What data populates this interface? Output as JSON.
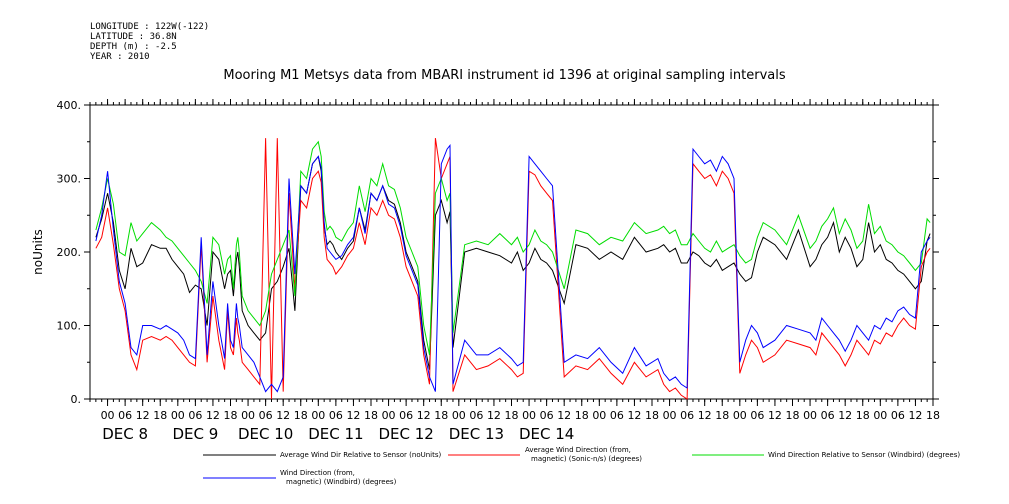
{
  "header": {
    "longitude": "LONGITUDE : 122W(-122)",
    "latitude": "LATITUDE : 36.8N",
    "depth": "DEPTH (m) : -2.5",
    "year": "YEAR : 2010"
  },
  "chart_data": {
    "type": "line",
    "title": "Mooring M1 Metsys data from MBARI instrument id 1396 at original sampling intervals",
    "ylabel": "noUnits",
    "xlabel": "",
    "ylim": [
      0,
      400
    ],
    "yticks": [
      0,
      100,
      200,
      300,
      400
    ],
    "ytick_labels": [
      "0.",
      "100.",
      "200.",
      "300.",
      "400."
    ],
    "xlim_hours": [
      -6,
      282
    ],
    "hour_tick_labels": [
      "00",
      "06",
      "12",
      "18"
    ],
    "day_labels": [
      "DEC  8",
      "DEC  9",
      "DEC 10",
      "DEC 11",
      "DEC 12",
      "DEC 13",
      "DEC 14"
    ],
    "grid": false,
    "legend_position": "bottom",
    "series": [
      {
        "name": "Average Wind Dir Relative to Sensor (noUnits)",
        "color": "#000000",
        "x": [
          -4,
          -2,
          0,
          2,
          4,
          6,
          8,
          10,
          12,
          15,
          18,
          20,
          22,
          24,
          26,
          28,
          30,
          32,
          34,
          36,
          38,
          40,
          41,
          42,
          43,
          44,
          44.5,
          45,
          46,
          48,
          50,
          52,
          54,
          56,
          58,
          60,
          62,
          64,
          66,
          68,
          70,
          72,
          73,
          74,
          75,
          76,
          77,
          78,
          80,
          82,
          84,
          86,
          88,
          90,
          92,
          94,
          96,
          98,
          100,
          102,
          104,
          106,
          108,
          110,
          112,
          114,
          116,
          117,
          118,
          122,
          126,
          130,
          134,
          138,
          140,
          142,
          144,
          146,
          148,
          150,
          152,
          156,
          160,
          164,
          168,
          172,
          176,
          180,
          184,
          188,
          190,
          192,
          194,
          196,
          198,
          200,
          202,
          204,
          206,
          208,
          210,
          212,
          214,
          216,
          218,
          220,
          222,
          224,
          228,
          232,
          236,
          240,
          242,
          244,
          246,
          248,
          250,
          252,
          254,
          256,
          258,
          260,
          262,
          264,
          266,
          268,
          270,
          272,
          274,
          276,
          278,
          280,
          281
        ],
        "y": [
          220,
          245,
          280,
          240,
          175,
          150,
          205,
          180,
          185,
          210,
          205,
          205,
          190,
          180,
          170,
          145,
          155,
          150,
          100,
          200,
          190,
          150,
          170,
          175,
          140,
          190,
          200,
          180,
          120,
          100,
          90,
          80,
          90,
          150,
          160,
          180,
          205,
          120,
          290,
          280,
          320,
          330,
          310,
          235,
          210,
          215,
          210,
          200,
          190,
          205,
          215,
          260,
          230,
          280,
          270,
          290,
          270,
          265,
          240,
          200,
          180,
          160,
          80,
          40,
          250,
          270,
          240,
          255,
          70,
          200,
          205,
          200,
          195,
          185,
          200,
          175,
          185,
          205,
          190,
          185,
          175,
          130,
          210,
          205,
          190,
          200,
          190,
          220,
          200,
          205,
          210,
          200,
          205,
          185,
          185,
          200,
          195,
          185,
          180,
          190,
          175,
          180,
          185,
          170,
          160,
          165,
          200,
          220,
          210,
          190,
          230,
          180,
          190,
          210,
          220,
          240,
          200,
          220,
          205,
          180,
          190,
          240,
          200,
          210,
          190,
          185,
          175,
          170,
          160,
          150,
          160,
          215,
          225
        ]
      },
      {
        "name": "Average Wind Direction (from, magnetic) (Sonic-n/s) (degrees)",
        "color": "#ff0000",
        "x": [
          -4,
          -2,
          0,
          2,
          4,
          6,
          8,
          10,
          12,
          15,
          18,
          20,
          22,
          24,
          26,
          28,
          30,
          32,
          34,
          36,
          38,
          40,
          41,
          42,
          43,
          44,
          44.5,
          45,
          46,
          48,
          50,
          52,
          54,
          56,
          58,
          60,
          62,
          64,
          66,
          68,
          70,
          72,
          73,
          74,
          75,
          76,
          77,
          78,
          80,
          82,
          84,
          86,
          88,
          90,
          92,
          94,
          96,
          98,
          100,
          102,
          104,
          106,
          108,
          110,
          112,
          114,
          116,
          117,
          118,
          122,
          126,
          130,
          134,
          138,
          140,
          142,
          144,
          146,
          148,
          150,
          152,
          156,
          160,
          164,
          168,
          172,
          176,
          180,
          184,
          188,
          190,
          192,
          194,
          196,
          198,
          200,
          202,
          204,
          206,
          208,
          210,
          212,
          214,
          216,
          218,
          220,
          222,
          224,
          228,
          232,
          236,
          240,
          242,
          244,
          246,
          248,
          250,
          252,
          254,
          256,
          258,
          260,
          262,
          264,
          266,
          268,
          270,
          272,
          274,
          276,
          278,
          280,
          281
        ],
        "y": [
          205,
          220,
          260,
          210,
          150,
          120,
          60,
          40,
          80,
          85,
          80,
          85,
          80,
          70,
          60,
          50,
          45,
          210,
          50,
          140,
          80,
          40,
          120,
          70,
          60,
          110,
          90,
          80,
          50,
          40,
          30,
          20,
          355,
          0,
          355,
          10,
          280,
          150,
          270,
          260,
          300,
          310,
          295,
          220,
          190,
          185,
          180,
          170,
          180,
          195,
          205,
          240,
          210,
          260,
          250,
          270,
          250,
          245,
          220,
          180,
          160,
          140,
          60,
          20,
          355,
          300,
          320,
          330,
          10,
          60,
          40,
          45,
          55,
          40,
          30,
          35,
          310,
          305,
          290,
          280,
          270,
          30,
          45,
          40,
          55,
          35,
          20,
          50,
          30,
          40,
          20,
          10,
          15,
          5,
          0,
          320,
          310,
          300,
          305,
          290,
          310,
          300,
          280,
          35,
          60,
          80,
          70,
          50,
          60,
          80,
          75,
          70,
          60,
          90,
          80,
          70,
          60,
          45,
          60,
          80,
          70,
          60,
          80,
          75,
          90,
          85,
          100,
          110,
          100,
          95,
          180,
          200,
          205
        ]
      },
      {
        "name": "Wind Direction Relative to Sensor (Windbird) (degrees)",
        "color": "#00dd00",
        "x": [
          -4,
          -2,
          0,
          2,
          4,
          6,
          8,
          10,
          12,
          15,
          18,
          20,
          22,
          24,
          26,
          28,
          30,
          32,
          34,
          36,
          38,
          40,
          41,
          42,
          43,
          44,
          44.5,
          45,
          46,
          48,
          50,
          52,
          54,
          56,
          58,
          60,
          62,
          64,
          66,
          68,
          70,
          72,
          73,
          74,
          75,
          76,
          77,
          78,
          80,
          82,
          84,
          86,
          88,
          90,
          92,
          94,
          96,
          98,
          100,
          102,
          104,
          106,
          108,
          110,
          112,
          114,
          116,
          117,
          118,
          122,
          126,
          130,
          134,
          138,
          140,
          142,
          144,
          146,
          148,
          150,
          152,
          156,
          160,
          164,
          168,
          172,
          176,
          180,
          184,
          188,
          190,
          192,
          194,
          196,
          198,
          200,
          202,
          204,
          206,
          208,
          210,
          212,
          214,
          216,
          218,
          220,
          222,
          224,
          228,
          232,
          236,
          240,
          242,
          244,
          246,
          248,
          250,
          252,
          254,
          256,
          258,
          260,
          262,
          264,
          266,
          268,
          270,
          272,
          274,
          276,
          278,
          280,
          281
        ],
        "y": [
          230,
          260,
          300,
          265,
          200,
          195,
          240,
          215,
          225,
          240,
          230,
          220,
          215,
          205,
          195,
          185,
          175,
          160,
          130,
          220,
          210,
          170,
          190,
          195,
          150,
          210,
          220,
          200,
          140,
          120,
          110,
          100,
          120,
          170,
          190,
          210,
          230,
          140,
          310,
          300,
          340,
          350,
          330,
          255,
          230,
          235,
          230,
          220,
          215,
          230,
          240,
          290,
          255,
          300,
          290,
          320,
          290,
          285,
          260,
          220,
          200,
          180,
          100,
          60,
          280,
          300,
          270,
          280,
          90,
          210,
          215,
          210,
          225,
          210,
          220,
          200,
          210,
          230,
          215,
          210,
          200,
          150,
          230,
          225,
          210,
          220,
          215,
          240,
          225,
          230,
          235,
          225,
          230,
          210,
          210,
          225,
          215,
          205,
          200,
          215,
          200,
          205,
          210,
          195,
          185,
          190,
          220,
          240,
          230,
          210,
          250,
          205,
          215,
          235,
          245,
          260,
          225,
          245,
          230,
          205,
          215,
          265,
          225,
          235,
          215,
          210,
          200,
          195,
          185,
          175,
          185,
          245,
          240
        ]
      },
      {
        "name": "Wind Direction (from, magnetic) (Windbird) (degrees)",
        "color": "#0000ff",
        "x": [
          -4,
          -2,
          0,
          2,
          4,
          6,
          8,
          10,
          12,
          15,
          18,
          20,
          22,
          24,
          26,
          28,
          30,
          32,
          34,
          36,
          38,
          40,
          41,
          42,
          43,
          44,
          44.5,
          45,
          46,
          48,
          50,
          52,
          54,
          56,
          58,
          60,
          62,
          64,
          66,
          68,
          70,
          72,
          73,
          74,
          75,
          76,
          77,
          78,
          80,
          82,
          84,
          86,
          88,
          90,
          92,
          94,
          96,
          98,
          100,
          102,
          104,
          106,
          108,
          110,
          112,
          114,
          116,
          117,
          118,
          122,
          126,
          130,
          134,
          138,
          140,
          142,
          144,
          146,
          148,
          150,
          152,
          156,
          160,
          164,
          168,
          172,
          176,
          180,
          184,
          188,
          190,
          192,
          194,
          196,
          198,
          200,
          202,
          204,
          206,
          208,
          210,
          212,
          214,
          216,
          218,
          220,
          222,
          224,
          228,
          232,
          236,
          240,
          242,
          244,
          246,
          248,
          250,
          252,
          254,
          256,
          258,
          260,
          262,
          264,
          266,
          268,
          270,
          272,
          274,
          276,
          278,
          280,
          281
        ],
        "y": [
          215,
          250,
          310,
          230,
          160,
          130,
          70,
          60,
          100,
          100,
          95,
          100,
          95,
          90,
          80,
          60,
          55,
          220,
          60,
          160,
          100,
          55,
          130,
          80,
          70,
          130,
          110,
          100,
          70,
          60,
          50,
          30,
          10,
          20,
          10,
          30,
          300,
          170,
          290,
          280,
          320,
          330,
          315,
          240,
          205,
          200,
          195,
          190,
          195,
          210,
          220,
          260,
          225,
          280,
          270,
          290,
          265,
          260,
          235,
          195,
          175,
          155,
          70,
          30,
          10,
          320,
          340,
          345,
          20,
          80,
          60,
          60,
          70,
          55,
          45,
          50,
          330,
          320,
          310,
          300,
          290,
          50,
          60,
          55,
          70,
          50,
          35,
          70,
          45,
          55,
          35,
          25,
          30,
          20,
          15,
          340,
          330,
          320,
          325,
          310,
          330,
          320,
          300,
          50,
          80,
          100,
          90,
          70,
          80,
          100,
          95,
          90,
          80,
          110,
          100,
          90,
          80,
          65,
          80,
          100,
          90,
          80,
          100,
          95,
          110,
          105,
          120,
          125,
          115,
          110,
          200,
          215,
          220
        ]
      }
    ],
    "legend": [
      {
        "label": "Average Wind Dir Relative to Sensor (noUnits)",
        "color": "#000000"
      },
      {
        "label": "Average Wind Direction (from, magnetic) (Sonic-n/s) (degrees)",
        "label_line1": "Average Wind Direction (from,",
        "label_line2": "magnetic) (Sonic-n/s) (degrees)",
        "color": "#ff0000"
      },
      {
        "label": "Wind Direction Relative to Sensor (Windbird) (degrees)",
        "color": "#00dd00"
      },
      {
        "label": "Wind Direction (from, magnetic) (Windbird) (degrees)",
        "label_line1": "Wind Direction (from,",
        "label_line2": "magnetic) (Windbird) (degrees)",
        "color": "#0000ff"
      }
    ]
  }
}
